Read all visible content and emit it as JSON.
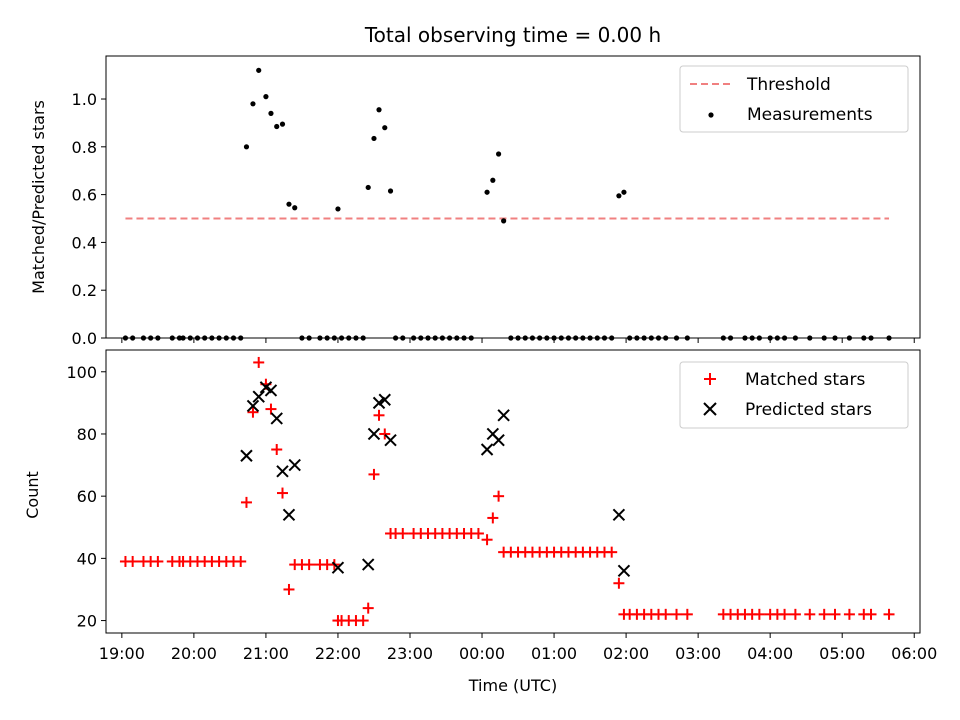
{
  "chart_data": [
    {
      "type": "scatter",
      "title": "Total observing time = 0.00 h",
      "xlabel": "",
      "ylabel": "Matched/Predicted stars",
      "xlim": [
        18.78,
        30.08
      ],
      "ylim": [
        0,
        1.18
      ],
      "yticks": [
        0.0,
        0.2,
        0.4,
        0.6,
        0.8,
        1.0
      ],
      "ytick_labels": [
        "0.0",
        "0.2",
        "0.4",
        "0.6",
        "0.8",
        "1.0"
      ],
      "grid": false,
      "legend": "top-right",
      "threshold": {
        "name": "Threshold",
        "value": 0.5,
        "x_range": [
          19.05,
          29.65
        ],
        "color": "#f08080"
      },
      "series": [
        {
          "name": "Measurements",
          "color": "#000000",
          "marker": "dot",
          "points": [
            [
              19.05,
              0
            ],
            [
              19.15,
              0
            ],
            [
              19.3,
              0
            ],
            [
              19.4,
              0
            ],
            [
              19.5,
              0
            ],
            [
              19.7,
              0
            ],
            [
              19.8,
              0
            ],
            [
              19.85,
              0
            ],
            [
              19.95,
              0
            ],
            [
              20.05,
              0
            ],
            [
              20.15,
              0
            ],
            [
              20.25,
              0
            ],
            [
              20.35,
              0
            ],
            [
              20.45,
              0
            ],
            [
              20.55,
              0
            ],
            [
              20.65,
              0
            ],
            [
              20.73,
              0.8
            ],
            [
              20.82,
              0.98
            ],
            [
              20.9,
              1.12
            ],
            [
              21.0,
              1.01
            ],
            [
              21.07,
              0.94
            ],
            [
              21.15,
              0.885
            ],
            [
              21.23,
              0.895
            ],
            [
              21.32,
              0.56
            ],
            [
              21.4,
              0.545
            ],
            [
              21.5,
              0
            ],
            [
              21.6,
              0
            ],
            [
              21.75,
              0
            ],
            [
              21.85,
              0
            ],
            [
              21.95,
              0
            ],
            [
              22.0,
              0.54
            ],
            [
              22.05,
              0
            ],
            [
              22.15,
              0
            ],
            [
              22.25,
              0
            ],
            [
              22.35,
              0
            ],
            [
              22.42,
              0.63
            ],
            [
              22.5,
              0.835
            ],
            [
              22.57,
              0.955
            ],
            [
              22.65,
              0.88
            ],
            [
              22.73,
              0.615
            ],
            [
              22.8,
              0
            ],
            [
              22.9,
              0
            ],
            [
              23.05,
              0
            ],
            [
              23.15,
              0
            ],
            [
              23.25,
              0
            ],
            [
              23.35,
              0
            ],
            [
              23.45,
              0
            ],
            [
              23.55,
              0
            ],
            [
              23.65,
              0
            ],
            [
              23.75,
              0
            ],
            [
              23.85,
              0
            ],
            [
              24.07,
              0.61
            ],
            [
              24.15,
              0.66
            ],
            [
              24.23,
              0.77
            ],
            [
              24.3,
              0.49
            ],
            [
              24.4,
              0
            ],
            [
              24.5,
              0
            ],
            [
              24.6,
              0
            ],
            [
              24.7,
              0
            ],
            [
              24.8,
              0
            ],
            [
              24.9,
              0
            ],
            [
              25.0,
              0
            ],
            [
              25.1,
              0
            ],
            [
              25.2,
              0
            ],
            [
              25.3,
              0
            ],
            [
              25.4,
              0
            ],
            [
              25.5,
              0
            ],
            [
              25.6,
              0
            ],
            [
              25.7,
              0
            ],
            [
              25.8,
              0
            ],
            [
              25.9,
              0.595
            ],
            [
              25.97,
              0.61
            ],
            [
              26.05,
              0
            ],
            [
              26.15,
              0
            ],
            [
              26.25,
              0
            ],
            [
              26.35,
              0
            ],
            [
              26.45,
              0
            ],
            [
              26.55,
              0
            ],
            [
              26.7,
              0
            ],
            [
              26.85,
              0
            ],
            [
              27.35,
              0
            ],
            [
              27.45,
              0
            ],
            [
              27.65,
              0
            ],
            [
              27.75,
              0
            ],
            [
              27.85,
              0
            ],
            [
              28.0,
              0
            ],
            [
              28.1,
              0
            ],
            [
              28.2,
              0
            ],
            [
              28.35,
              0
            ],
            [
              28.55,
              0
            ],
            [
              28.75,
              0
            ],
            [
              28.9,
              0
            ],
            [
              29.1,
              0
            ],
            [
              29.3,
              0
            ],
            [
              29.4,
              0
            ],
            [
              29.65,
              0
            ]
          ]
        }
      ]
    },
    {
      "type": "scatter",
      "title": "",
      "xlabel": "Time (UTC)",
      "ylabel": "Count",
      "xlim": [
        18.78,
        30.08
      ],
      "ylim": [
        16,
        107
      ],
      "yticks": [
        20,
        40,
        60,
        80,
        100
      ],
      "ytick_labels": [
        "20",
        "40",
        "60",
        "80",
        "100"
      ],
      "xticks": [
        19,
        20,
        21,
        22,
        23,
        24,
        25,
        26,
        27,
        28,
        29,
        30
      ],
      "xtick_labels": [
        "19:00",
        "20:00",
        "21:00",
        "22:00",
        "23:00",
        "00:00",
        "01:00",
        "02:00",
        "03:00",
        "04:00",
        "05:00",
        "06:00"
      ],
      "grid": false,
      "legend": "top-right",
      "series": [
        {
          "name": "Matched stars",
          "color": "#ff0000",
          "marker": "plus",
          "points": [
            [
              19.05,
              39
            ],
            [
              19.15,
              39
            ],
            [
              19.3,
              39
            ],
            [
              19.4,
              39
            ],
            [
              19.5,
              39
            ],
            [
              19.7,
              39
            ],
            [
              19.8,
              39
            ],
            [
              19.85,
              39
            ],
            [
              19.95,
              39
            ],
            [
              20.05,
              39
            ],
            [
              20.15,
              39
            ],
            [
              20.25,
              39
            ],
            [
              20.35,
              39
            ],
            [
              20.45,
              39
            ],
            [
              20.55,
              39
            ],
            [
              20.65,
              39
            ],
            [
              20.73,
              58
            ],
            [
              20.82,
              87
            ],
            [
              20.9,
              103
            ],
            [
              21.0,
              96
            ],
            [
              21.07,
              88
            ],
            [
              21.15,
              75
            ],
            [
              21.23,
              61
            ],
            [
              21.32,
              30
            ],
            [
              21.4,
              38
            ],
            [
              21.5,
              38
            ],
            [
              21.6,
              38
            ],
            [
              21.75,
              38
            ],
            [
              21.85,
              38
            ],
            [
              21.95,
              38
            ],
            [
              22.0,
              20
            ],
            [
              22.05,
              20
            ],
            [
              22.15,
              20
            ],
            [
              22.25,
              20
            ],
            [
              22.35,
              20
            ],
            [
              22.42,
              24
            ],
            [
              22.5,
              67
            ],
            [
              22.57,
              86
            ],
            [
              22.65,
              80
            ],
            [
              22.73,
              48
            ],
            [
              22.8,
              48
            ],
            [
              22.9,
              48
            ],
            [
              23.05,
              48
            ],
            [
              23.15,
              48
            ],
            [
              23.25,
              48
            ],
            [
              23.35,
              48
            ],
            [
              23.45,
              48
            ],
            [
              23.55,
              48
            ],
            [
              23.65,
              48
            ],
            [
              23.75,
              48
            ],
            [
              23.85,
              48
            ],
            [
              23.95,
              48
            ],
            [
              24.07,
              46
            ],
            [
              24.15,
              53
            ],
            [
              24.23,
              60
            ],
            [
              24.3,
              42
            ],
            [
              24.4,
              42
            ],
            [
              24.5,
              42
            ],
            [
              24.6,
              42
            ],
            [
              24.7,
              42
            ],
            [
              24.8,
              42
            ],
            [
              24.9,
              42
            ],
            [
              25.0,
              42
            ],
            [
              25.1,
              42
            ],
            [
              25.2,
              42
            ],
            [
              25.3,
              42
            ],
            [
              25.4,
              42
            ],
            [
              25.5,
              42
            ],
            [
              25.6,
              42
            ],
            [
              25.7,
              42
            ],
            [
              25.8,
              42
            ],
            [
              25.9,
              32
            ],
            [
              25.97,
              22
            ],
            [
              26.05,
              22
            ],
            [
              26.15,
              22
            ],
            [
              26.25,
              22
            ],
            [
              26.35,
              22
            ],
            [
              26.45,
              22
            ],
            [
              26.55,
              22
            ],
            [
              26.7,
              22
            ],
            [
              26.85,
              22
            ],
            [
              27.35,
              22
            ],
            [
              27.45,
              22
            ],
            [
              27.55,
              22
            ],
            [
              27.65,
              22
            ],
            [
              27.75,
              22
            ],
            [
              27.85,
              22
            ],
            [
              28.0,
              22
            ],
            [
              28.1,
              22
            ],
            [
              28.2,
              22
            ],
            [
              28.35,
              22
            ],
            [
              28.55,
              22
            ],
            [
              28.75,
              22
            ],
            [
              28.9,
              22
            ],
            [
              29.1,
              22
            ],
            [
              29.3,
              22
            ],
            [
              29.4,
              22
            ],
            [
              29.65,
              22
            ]
          ]
        },
        {
          "name": "Predicted stars",
          "color": "#000000",
          "marker": "x",
          "points": [
            [
              20.73,
              73
            ],
            [
              20.82,
              89
            ],
            [
              20.9,
              92
            ],
            [
              21.0,
              95
            ],
            [
              21.07,
              94
            ],
            [
              21.15,
              85
            ],
            [
              21.23,
              68
            ],
            [
              21.32,
              54
            ],
            [
              21.4,
              70
            ],
            [
              22.0,
              37
            ],
            [
              22.42,
              38
            ],
            [
              22.5,
              80
            ],
            [
              22.57,
              90
            ],
            [
              22.65,
              91
            ],
            [
              22.73,
              78
            ],
            [
              24.07,
              75
            ],
            [
              24.15,
              80
            ],
            [
              24.23,
              78
            ],
            [
              24.3,
              86
            ],
            [
              25.9,
              54
            ],
            [
              25.97,
              36
            ]
          ]
        }
      ]
    }
  ]
}
